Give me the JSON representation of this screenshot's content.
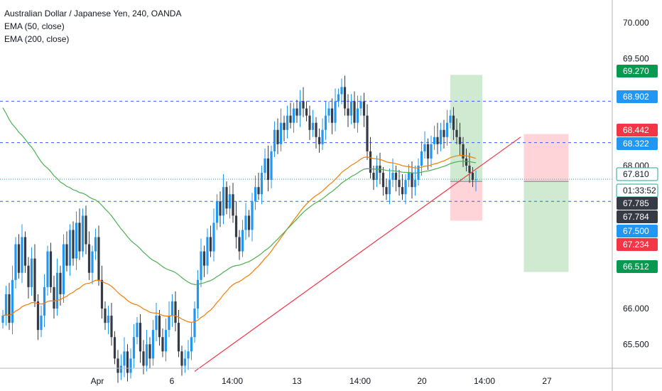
{
  "legend": {
    "symbol": "Australian Dollar / Japanese Yen, 240, OANDA",
    "ema50": "EMA (50, close)",
    "ema200": "EMA (200, close)"
  },
  "colors": {
    "up": "#26a69a",
    "candle_up": "#2196f3",
    "candle_down": "#363a45",
    "ema50": "#f57c00",
    "ema200": "#4caf50",
    "trendline": "#f23645",
    "hline": "#2962ff",
    "profit_zone": "#c8e6c9",
    "loss_zone": "#ffcdd2"
  },
  "chart_data": {
    "type": "candlestick",
    "y_axis": {
      "ticks": [
        "70.000",
        "69.500",
        "68.000",
        "66.000",
        "65.500"
      ],
      "ylim": [
        65.05,
        70.3
      ]
    },
    "x_axis": {
      "ticks": [
        "Apr",
        "6",
        "14:00",
        "13",
        "14:00",
        "20",
        "14:00",
        "27"
      ]
    },
    "price_labels": [
      {
        "value": "69.270",
        "kind": "green"
      },
      {
        "value": "68.902",
        "kind": "blue"
      },
      {
        "value": "68.442",
        "kind": "red"
      },
      {
        "value": "68.322",
        "kind": "blue"
      },
      {
        "value": "67.810",
        "kind": "current"
      },
      {
        "value": "01:33:52",
        "kind": "countdown"
      },
      {
        "value": "67.785",
        "kind": "dark"
      },
      {
        "value": "67.784",
        "kind": "dark"
      },
      {
        "value": "67.500",
        "kind": "blue"
      },
      {
        "value": "67.234",
        "kind": "red"
      },
      {
        "value": "66.512",
        "kind": "green"
      }
    ],
    "hlines": [
      68.902,
      68.322,
      67.81,
      67.5
    ],
    "trendline": {
      "from_index": 60,
      "from_value": 65.12,
      "to_index": 162,
      "to_value": 68.4
    },
    "positions": [
      {
        "type": "long",
        "entry": 67.78,
        "target": 69.27,
        "stop": 67.23,
        "start_index": 140,
        "end_index": 150
      },
      {
        "type": "short",
        "entry": 67.78,
        "target": 66.512,
        "stop": 68.442,
        "start_index": 163,
        "end_index": 177
      }
    ],
    "closes": [
      65.9,
      66.2,
      65.8,
      66.4,
      66.9,
      66.5,
      67.0,
      66.6,
      66.3,
      66.7,
      66.1,
      65.7,
      65.9,
      66.3,
      66.8,
      66.3,
      66.0,
      66.5,
      66.2,
      66.9,
      66.6,
      67.1,
      66.7,
      67.2,
      66.8,
      67.3,
      66.9,
      66.5,
      66.8,
      67.0,
      66.4,
      66.0,
      65.8,
      65.9,
      65.6,
      65.3,
      65.1,
      65.2,
      65.4,
      65.1,
      65.3,
      65.6,
      65.8,
      65.4,
      65.2,
      65.5,
      65.3,
      65.7,
      65.9,
      65.6,
      65.4,
      65.7,
      65.9,
      66.1,
      65.8,
      65.4,
      65.2,
      65.3,
      65.4,
      65.6,
      66.0,
      66.4,
      66.8,
      66.6,
      67.0,
      66.8,
      67.2,
      67.5,
      67.3,
      67.7,
      67.4,
      67.6,
      67.3,
      67.0,
      66.8,
      67.1,
      67.3,
      67.1,
      67.5,
      67.7,
      67.6,
      67.9,
      68.1,
      67.8,
      68.2,
      68.5,
      68.3,
      68.6,
      68.5,
      68.7,
      68.6,
      68.8,
      68.7,
      68.9,
      68.8,
      68.7,
      68.5,
      68.6,
      68.4,
      68.3,
      68.5,
      68.7,
      68.8,
      68.6,
      68.9,
      69.0,
      69.1,
      68.8,
      68.7,
      68.9,
      68.6,
      68.8,
      68.9,
      68.7,
      68.2,
      67.9,
      67.8,
      68.0,
      67.9,
      67.7,
      67.6,
      67.8,
      67.9,
      67.8,
      67.7,
      67.6,
      67.8,
      67.9,
      67.7,
      67.8,
      68.0,
      68.2,
      68.3,
      68.1,
      68.3,
      68.4,
      68.3,
      68.5,
      68.4,
      68.6,
      68.7,
      68.5,
      68.4,
      68.3,
      68.1,
      68.0,
      67.9,
      67.8,
      67.81
    ]
  }
}
